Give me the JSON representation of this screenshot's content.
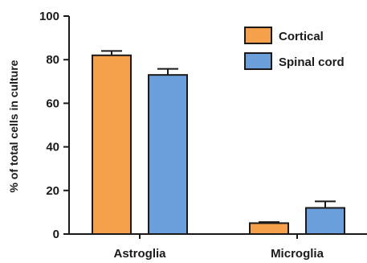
{
  "chart_data": {
    "type": "bar",
    "categories": [
      "Astroglia",
      "Microglia"
    ],
    "series": [
      {
        "name": "Cortical",
        "values": [
          82,
          5
        ],
        "errors": [
          2,
          0.5
        ],
        "color": "#f5a04a"
      },
      {
        "name": "Spinal cord",
        "values": [
          73,
          12
        ],
        "errors": [
          2.8,
          3
        ],
        "color": "#6a9fdb"
      }
    ],
    "ylabel": "% of total cells in culture",
    "ylim": [
      0,
      100
    ],
    "yticks": [
      0,
      20,
      40,
      60,
      80,
      100
    ],
    "grid": false,
    "legend_position": "top-right"
  }
}
